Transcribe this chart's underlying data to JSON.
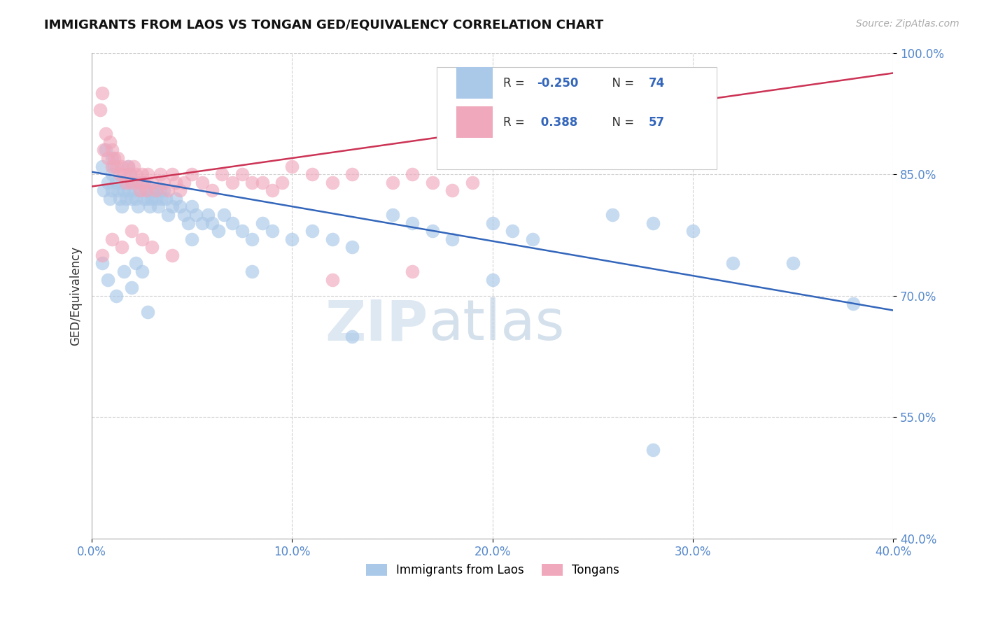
{
  "title": "IMMIGRANTS FROM LAOS VS TONGAN GED/EQUIVALENCY CORRELATION CHART",
  "source": "Source: ZipAtlas.com",
  "ylabel": "GED/Equivalency",
  "xlim": [
    0.0,
    0.4
  ],
  "ylim": [
    0.4,
    1.0
  ],
  "xticks": [
    0.0,
    0.1,
    0.2,
    0.3,
    0.4
  ],
  "xtick_labels": [
    "0.0%",
    "10.0%",
    "20.0%",
    "30.0%",
    "40.0%"
  ],
  "yticks": [
    0.4,
    0.55,
    0.7,
    0.85,
    1.0
  ],
  "ytick_labels": [
    "40.0%",
    "55.0%",
    "70.0%",
    "85.0%",
    "100.0%"
  ],
  "blue_color": "#aac8e8",
  "pink_color": "#f0a8bc",
  "blue_line_color": "#3366bb",
  "pink_line_color": "#cc3355",
  "R_blue": -0.25,
  "N_blue": 74,
  "R_pink": 0.388,
  "N_pink": 57,
  "legend_label_blue": "Immigrants from Laos",
  "legend_label_pink": "Tongans",
  "watermark_zip": "ZIP",
  "watermark_atlas": "atlas",
  "blue_trend_x": [
    0.0,
    0.4
  ],
  "blue_trend_y": [
    0.853,
    0.682
  ],
  "pink_trend_x": [
    0.0,
    0.4
  ],
  "pink_trend_y": [
    0.835,
    0.975
  ],
  "blue_x": [
    0.005,
    0.006,
    0.007,
    0.008,
    0.009,
    0.01,
    0.01,
    0.01,
    0.011,
    0.012,
    0.013,
    0.014,
    0.015,
    0.015,
    0.016,
    0.017,
    0.018,
    0.018,
    0.019,
    0.02,
    0.02,
    0.021,
    0.022,
    0.022,
    0.023,
    0.024,
    0.025,
    0.026,
    0.027,
    0.028,
    0.029,
    0.03,
    0.03,
    0.031,
    0.032,
    0.033,
    0.034,
    0.035,
    0.036,
    0.037,
    0.038,
    0.04,
    0.042,
    0.044,
    0.046,
    0.048,
    0.05,
    0.052,
    0.055,
    0.058,
    0.06,
    0.063,
    0.066,
    0.07,
    0.075,
    0.08,
    0.085,
    0.09,
    0.1,
    0.11,
    0.12,
    0.13,
    0.15,
    0.16,
    0.17,
    0.18,
    0.2,
    0.21,
    0.22,
    0.26,
    0.28,
    0.3,
    0.32,
    0.38
  ],
  "blue_y": [
    0.86,
    0.83,
    0.88,
    0.84,
    0.82,
    0.87,
    0.85,
    0.83,
    0.86,
    0.84,
    0.83,
    0.82,
    0.81,
    0.84,
    0.83,
    0.82,
    0.86,
    0.83,
    0.85,
    0.84,
    0.82,
    0.83,
    0.84,
    0.82,
    0.81,
    0.83,
    0.84,
    0.82,
    0.83,
    0.82,
    0.81,
    0.83,
    0.82,
    0.83,
    0.82,
    0.81,
    0.83,
    0.82,
    0.83,
    0.82,
    0.8,
    0.81,
    0.82,
    0.81,
    0.8,
    0.79,
    0.81,
    0.8,
    0.79,
    0.8,
    0.79,
    0.78,
    0.8,
    0.79,
    0.78,
    0.77,
    0.79,
    0.78,
    0.77,
    0.78,
    0.77,
    0.76,
    0.8,
    0.79,
    0.78,
    0.77,
    0.79,
    0.78,
    0.77,
    0.8,
    0.79,
    0.78,
    0.74,
    0.69
  ],
  "pink_x": [
    0.004,
    0.005,
    0.006,
    0.007,
    0.008,
    0.009,
    0.01,
    0.01,
    0.011,
    0.012,
    0.013,
    0.014,
    0.015,
    0.016,
    0.017,
    0.018,
    0.019,
    0.02,
    0.021,
    0.022,
    0.023,
    0.024,
    0.025,
    0.026,
    0.027,
    0.028,
    0.03,
    0.032,
    0.034,
    0.036,
    0.038,
    0.04,
    0.042,
    0.044,
    0.046,
    0.05,
    0.055,
    0.06,
    0.065,
    0.07,
    0.075,
    0.08,
    0.085,
    0.09,
    0.095,
    0.1,
    0.11,
    0.12,
    0.13,
    0.15,
    0.16,
    0.17,
    0.18,
    0.19,
    0.2,
    0.22,
    0.25
  ],
  "pink_y": [
    0.93,
    0.95,
    0.88,
    0.9,
    0.87,
    0.89,
    0.86,
    0.88,
    0.87,
    0.86,
    0.87,
    0.85,
    0.86,
    0.85,
    0.84,
    0.86,
    0.85,
    0.84,
    0.86,
    0.85,
    0.84,
    0.83,
    0.85,
    0.84,
    0.83,
    0.85,
    0.84,
    0.83,
    0.85,
    0.84,
    0.83,
    0.85,
    0.84,
    0.83,
    0.84,
    0.85,
    0.84,
    0.83,
    0.85,
    0.84,
    0.85,
    0.84,
    0.84,
    0.83,
    0.84,
    0.86,
    0.85,
    0.84,
    0.85,
    0.84,
    0.85,
    0.84,
    0.83,
    0.84,
    0.88,
    0.88,
    0.92
  ],
  "outlier_blue_x": [
    0.005,
    0.008,
    0.012,
    0.016,
    0.02,
    0.022,
    0.025,
    0.028,
    0.05,
    0.08,
    0.13,
    0.2,
    0.28,
    0.35
  ],
  "outlier_blue_y": [
    0.74,
    0.72,
    0.7,
    0.73,
    0.71,
    0.74,
    0.73,
    0.68,
    0.77,
    0.73,
    0.65,
    0.72,
    0.51,
    0.74
  ],
  "outlier_pink_x": [
    0.005,
    0.01,
    0.015,
    0.02,
    0.025,
    0.03,
    0.04,
    0.12,
    0.16,
    0.19
  ],
  "outlier_pink_y": [
    0.75,
    0.77,
    0.76,
    0.78,
    0.77,
    0.76,
    0.75,
    0.72,
    0.73,
    0.88
  ]
}
